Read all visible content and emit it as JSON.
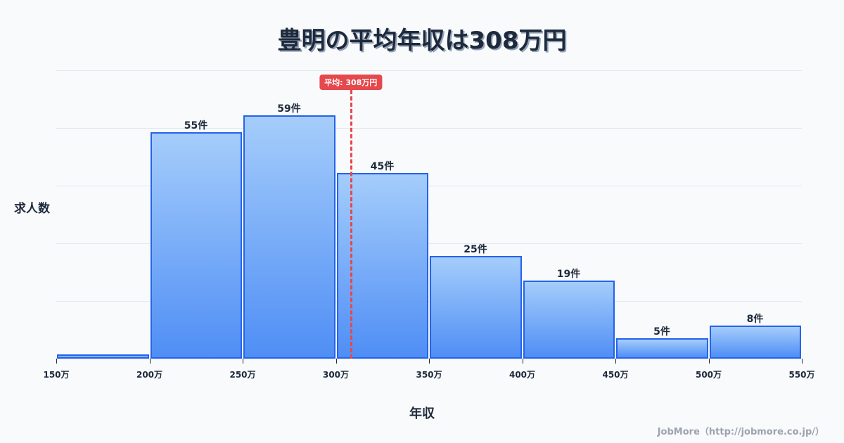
{
  "title": "豊明の平均年収は308万円",
  "axes": {
    "ylabel": "求人数",
    "xlabel": "年収"
  },
  "mean": {
    "label": "平均: 308万円",
    "value": 308
  },
  "credit": "JobMore（http://jobmore.co.jp/）",
  "colors": {
    "bar_border": "#2563eb",
    "bar_top": "#a5cdfb",
    "bar_bottom": "#4f8ef5",
    "mean_line": "#e5484d",
    "text": "#1e293b"
  },
  "chart_data": {
    "type": "bar",
    "title": "豊明の平均年収は308万円",
    "xlabel": "年収",
    "ylabel": "求人数",
    "categories": [
      "150万-200万",
      "200万-250万",
      "250万-300万",
      "300万-350万",
      "350万-400万",
      "400万-450万",
      "450万-500万",
      "500万-550万"
    ],
    "values": [
      1,
      55,
      59,
      45,
      25,
      19,
      5,
      8
    ],
    "value_labels": [
      "",
      "55件",
      "59件",
      "45件",
      "25件",
      "19件",
      "5件",
      "8件"
    ],
    "x_ticks": [
      "150万",
      "200万",
      "250万",
      "300万",
      "350万",
      "400万",
      "450万",
      "500万",
      "550万"
    ],
    "ylim": [
      0,
      70
    ],
    "grid": true,
    "annotations": [
      {
        "type": "vline",
        "x": 308,
        "label": "平均: 308万円"
      }
    ]
  }
}
